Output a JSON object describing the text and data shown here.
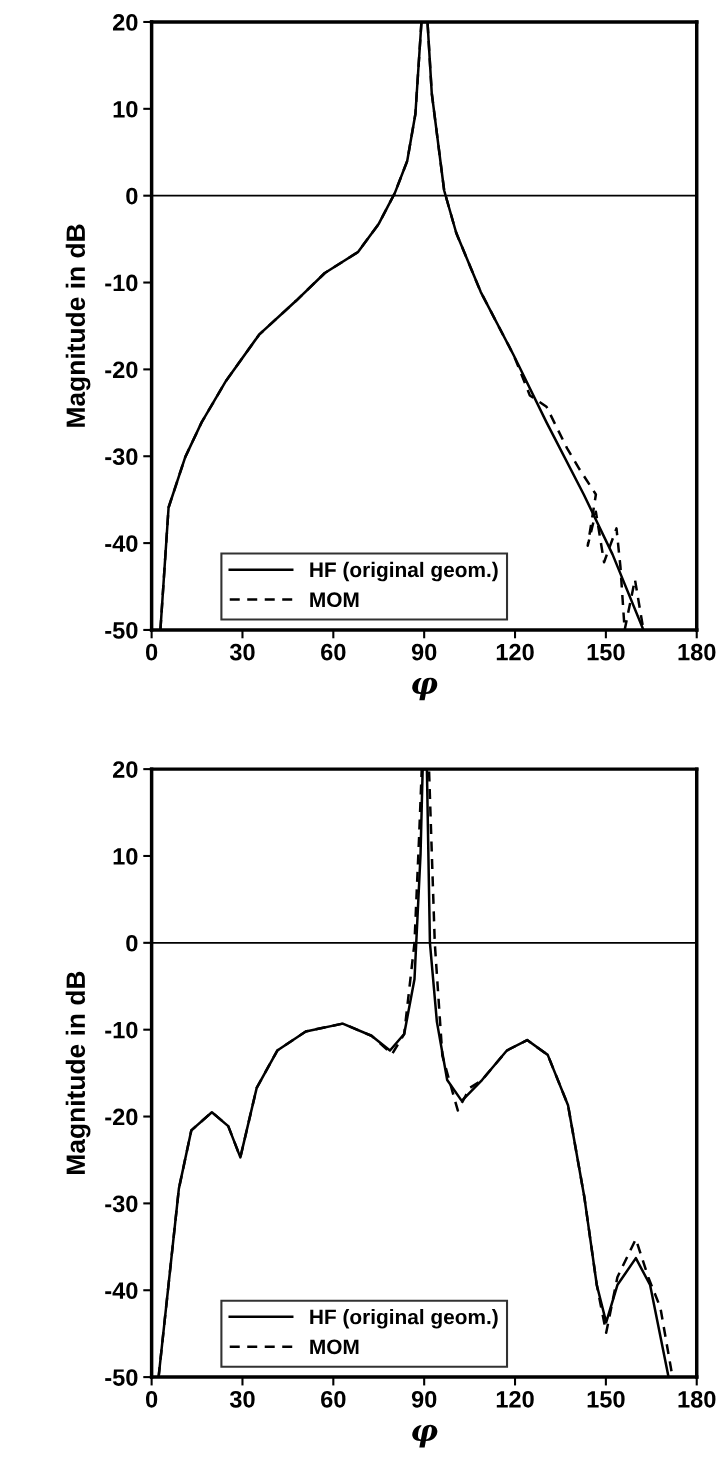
{
  "chart_data": [
    {
      "type": "line",
      "xlabel": "φ",
      "ylabel": "Magnitude in dB",
      "xlim": [
        0,
        180
      ],
      "ylim": [
        -50,
        20
      ],
      "xticks": [
        0,
        30,
        60,
        90,
        120,
        150,
        180
      ],
      "yticks": [
        -50,
        -40,
        -30,
        -20,
        -10,
        0,
        10,
        20
      ],
      "legend": "bottom",
      "grid": false,
      "ref_lines": [
        {
          "axis": "y",
          "value": 0,
          "color": "#000000"
        }
      ],
      "series": [
        {
          "name": "HF (original geom.)",
          "color": "#000000",
          "line_style": "solid",
          "x": [
            2.9,
            5.6,
            11.1,
            16.5,
            24.6,
            35.5,
            47.7,
            57.2,
            68.1,
            74.9,
            80.3,
            84.4,
            87.1,
            89.1,
            91.1,
            92.5,
            96.6,
            100.6,
            108.7,
            119.6,
            130.4,
            142.7,
            152.2,
            162.4
          ],
          "values": [
            -50,
            -35.9,
            -30.1,
            -26.1,
            -21.3,
            -16,
            -12.1,
            -8.9,
            -6.5,
            -3.3,
            0.3,
            4,
            9.4,
            20,
            20,
            11.8,
            0.6,
            -4.3,
            -11.1,
            -18.4,
            -26.1,
            -34.4,
            -41.3,
            -50
          ]
        },
        {
          "name": "MOM",
          "color": "#000000",
          "line_style": "dashed",
          "x": [
            2.9,
            5.6,
            11.1,
            16.5,
            24.6,
            35.5,
            47.7,
            57.2,
            68.1,
            74.9,
            80.3,
            84.4,
            87.1,
            89.1,
            91.1,
            92.5,
            96.6,
            100.6,
            108.7,
            119.6,
            124.9,
            130.4,
            137.2,
            141.3,
            146.7,
            144.0,
            146.7,
            149.4,
            153.5,
            154.8,
            156.2,
            159.6,
            162.4
          ],
          "values": [
            -50,
            -35.9,
            -30.1,
            -26.1,
            -21.3,
            -16,
            -12.1,
            -8.9,
            -6.5,
            -3.3,
            0.3,
            4,
            9.4,
            20,
            20,
            11.8,
            0.6,
            -4.3,
            -11.1,
            -18.4,
            -23,
            -24.3,
            -29.1,
            -31.5,
            -34.4,
            -40.3,
            -36.4,
            -42.2,
            -38.3,
            -42.7,
            -50,
            -44.2,
            -50
          ]
        }
      ]
    },
    {
      "type": "line",
      "xlabel": "φ",
      "ylabel": "Magnitude in dB",
      "xlim": [
        0,
        180
      ],
      "ylim": [
        -50,
        20
      ],
      "xticks": [
        0,
        30,
        60,
        90,
        120,
        150,
        180
      ],
      "yticks": [
        -50,
        -40,
        -30,
        -20,
        -10,
        0,
        10,
        20
      ],
      "legend": "bottom",
      "grid": false,
      "ref_lines": [
        {
          "axis": "y",
          "value": 0,
          "color": "#000000"
        }
      ],
      "series": [
        {
          "name": "HF (original geom.)",
          "color": "#000000",
          "line_style": "solid",
          "x": [
            2.3,
            9.0,
            13.1,
            19.9,
            25.3,
            29.3,
            34.7,
            41.5,
            50.9,
            63.1,
            72.6,
            78.7,
            83.4,
            86.8,
            88.8,
            89.5,
            90.9,
            91.9,
            94.2,
            97.6,
            102.4,
            109.1,
            117.3,
            124.0,
            130.8,
            137.5,
            142.9,
            147.0,
            150.1,
            153.8,
            159.9,
            164.6,
            170.7
          ],
          "values": [
            -50,
            -28.3,
            -21.6,
            -19.5,
            -21.1,
            -24.7,
            -16.7,
            -12.4,
            -10.2,
            -9.3,
            -10.7,
            -12.4,
            -10.5,
            -4.2,
            10.2,
            20,
            20,
            0,
            -9.1,
            -15.8,
            -18.2,
            -15.8,
            -12.4,
            -11.2,
            -12.9,
            -18.7,
            -29.3,
            -39.4,
            -43.7,
            -39.4,
            -36.3,
            -39.4,
            -50
          ]
        },
        {
          "name": "MOM",
          "color": "#000000",
          "line_style": "dashed",
          "x": [
            2.3,
            9.0,
            13.1,
            19.9,
            25.3,
            29.3,
            34.7,
            41.5,
            50.9,
            63.1,
            72.6,
            79.4,
            83.4,
            86.8,
            88.3,
            89.2,
            91.6,
            93.5,
            96.0,
            101.1,
            105.1,
            109.1,
            117.3,
            124.0,
            130.8,
            137.5,
            142.9,
            147.0,
            150.1,
            153.8,
            159.9,
            164.0,
            168.0,
            172.0
          ],
          "values": [
            -50,
            -28.3,
            -21.6,
            -19.5,
            -21.1,
            -24.7,
            -16.7,
            -12.4,
            -10.2,
            -9.3,
            -10.7,
            -12.8,
            -10.5,
            0,
            12,
            20,
            20,
            0,
            -13,
            -19.3,
            -16.7,
            -15.8,
            -12.4,
            -11.2,
            -12.9,
            -18.7,
            -29.3,
            -39.4,
            -44.9,
            -38.5,
            -34.1,
            -38.5,
            -42,
            -50
          ]
        }
      ]
    }
  ]
}
